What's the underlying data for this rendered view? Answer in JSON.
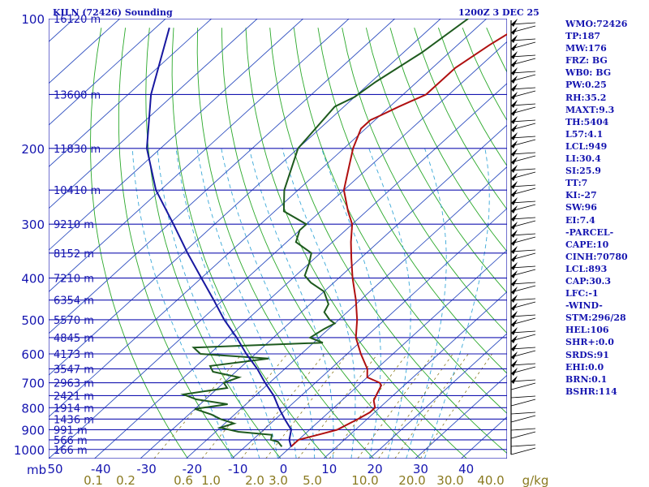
{
  "chart_data": {
    "type": "line",
    "title": "KILN (72426) Sounding",
    "time_label": "1200Z  3 DEC 25",
    "xlabel": "",
    "ylabel": "mb",
    "pressure_ticks": [
      100,
      200,
      300,
      400,
      500,
      600,
      700,
      800,
      900,
      1000
    ],
    "ylim": [
      1050,
      100
    ],
    "temperature_ticks": [
      "50",
      "-40",
      "-30",
      "-20",
      "-10",
      "0",
      "10",
      "20",
      "30",
      "40"
    ],
    "xlim_at_1050mb": [
      -50,
      50
    ],
    "mixing_ratio_ticks": [
      "0.1",
      "0.2",
      "0.6",
      "1.0",
      "2.0",
      "3.0",
      "5.0",
      "10.0",
      "20.0",
      "30.0",
      "40.0"
    ],
    "mixing_ratio_unit": "g/kg",
    "height_labels": [
      {
        "p": 100,
        "label": "16120 m"
      },
      {
        "p": 150,
        "label": "13600 m"
      },
      {
        "p": 200,
        "label": "11830 m"
      },
      {
        "p": 250,
        "label": "10410 m"
      },
      {
        "p": 300,
        "label": "9210 m"
      },
      {
        "p": 350,
        "label": "8152 m"
      },
      {
        "p": 400,
        "label": "7210 m"
      },
      {
        "p": 450,
        "label": "6354 m"
      },
      {
        "p": 500,
        "label": "5570 m"
      },
      {
        "p": 550,
        "label": "4845 m"
      },
      {
        "p": 600,
        "label": "4173 m"
      },
      {
        "p": 650,
        "label": "3547 m"
      },
      {
        "p": 700,
        "label": "2963 m"
      },
      {
        "p": 750,
        "label": "2421 m"
      },
      {
        "p": 800,
        "label": "1914 m"
      },
      {
        "p": 850,
        "label": "1436 m"
      },
      {
        "p": 900,
        "label": "991 m"
      },
      {
        "p": 950,
        "label": "566 m"
      },
      {
        "p": 1000,
        "label": "166 m"
      }
    ],
    "grid": true,
    "series": [
      {
        "name": "",
        "color": "#b01010",
        "points": [
          [
            985,
            0
          ],
          [
            950,
            0
          ],
          [
            925,
            3
          ],
          [
            900,
            6
          ],
          [
            850,
            8
          ],
          [
            820,
            9
          ],
          [
            800,
            9
          ],
          [
            770,
            7
          ],
          [
            740,
            6
          ],
          [
            710,
            5
          ],
          [
            700,
            4
          ],
          [
            680,
            0
          ],
          [
            650,
            -2
          ],
          [
            600,
            -7
          ],
          [
            550,
            -12
          ],
          [
            500,
            -16
          ],
          [
            450,
            -21
          ],
          [
            400,
            -27
          ],
          [
            360,
            -32
          ],
          [
            330,
            -36
          ],
          [
            300,
            -40
          ],
          [
            280,
            -44
          ],
          [
            250,
            -50
          ],
          [
            230,
            -53
          ],
          [
            200,
            -58
          ],
          [
            180,
            -61
          ],
          [
            172,
            -61
          ],
          [
            168,
            -60
          ],
          [
            160,
            -58
          ],
          [
            150,
            -55
          ],
          [
            130,
            -55
          ],
          [
            115,
            -53
          ],
          [
            100,
            -50
          ]
        ]
      },
      {
        "name": "",
        "color": "#1e5a1e",
        "points": [
          [
            985,
            -2
          ],
          [
            960,
            -4
          ],
          [
            950,
            -6
          ],
          [
            925,
            -7
          ],
          [
            910,
            -15
          ],
          [
            890,
            -20
          ],
          [
            870,
            -18
          ],
          [
            850,
            -22
          ],
          [
            830,
            -25
          ],
          [
            805,
            -30
          ],
          [
            785,
            -24
          ],
          [
            765,
            -32
          ],
          [
            745,
            -36
          ],
          [
            720,
            -28
          ],
          [
            700,
            -30
          ],
          [
            680,
            -28
          ],
          [
            660,
            -35
          ],
          [
            640,
            -37
          ],
          [
            615,
            -26
          ],
          [
            600,
            -42
          ],
          [
            580,
            -45
          ],
          [
            565,
            -18
          ],
          [
            550,
            -22
          ],
          [
            525,
            -21
          ],
          [
            510,
            -20
          ],
          [
            500,
            -22
          ],
          [
            480,
            -25
          ],
          [
            460,
            -26
          ],
          [
            430,
            -30
          ],
          [
            410,
            -35
          ],
          [
            395,
            -38
          ],
          [
            370,
            -40
          ],
          [
            350,
            -42
          ],
          [
            330,
            -48
          ],
          [
            310,
            -50
          ],
          [
            300,
            -50
          ],
          [
            280,
            -58
          ],
          [
            250,
            -63
          ],
          [
            200,
            -70
          ],
          [
            160,
            -72
          ],
          [
            152,
            -70
          ],
          [
            140,
            -69
          ],
          [
            120,
            -66
          ],
          [
            100,
            -64
          ]
        ]
      },
      {
        "name": "",
        "color": "#1818a0",
        "points": [
          [
            985,
            0
          ],
          [
            950,
            -2
          ],
          [
            900,
            -4
          ],
          [
            850,
            -8
          ],
          [
            800,
            -12
          ],
          [
            750,
            -16
          ],
          [
            700,
            -21
          ],
          [
            650,
            -26
          ],
          [
            600,
            -32
          ],
          [
            550,
            -38
          ],
          [
            500,
            -45
          ],
          [
            450,
            -52
          ],
          [
            400,
            -60
          ],
          [
            350,
            -69
          ],
          [
            300,
            -79
          ],
          [
            250,
            -91
          ],
          [
            200,
            -103
          ],
          [
            150,
            -115
          ],
          [
            105,
            -127
          ]
        ]
      }
    ]
  },
  "stats": [
    "WMO:72426",
    "TP:187",
    "MW:176",
    "FRZ: BG",
    "WB0: BG",
    "PW:0.25",
    "RH:35.2",
    "MAXT:9.3",
    "TH:5404",
    "L57:4.1",
    "LCL:949",
    "LI:30.4",
    "SI:25.9",
    "TT:7",
    "KI:-27",
    "SW:96",
    "EI:7.4",
    "-PARCEL-",
    "CAPE:10",
    "CINH:70780",
    "LCL:893",
    "CAP:30.3",
    "LFC:-1",
    "-WIND-",
    "STM:296/28",
    "HEL:106",
    "SHR+:0.0",
    "SRDS:91",
    "EHI:0.0",
    "BRN:0.1",
    "BSHR:114"
  ],
  "colors": {
    "text": "#1515b0",
    "isobar": "#1515b0",
    "isotherm": "#3050c0",
    "dry_adiabat": "#2aa82a",
    "moist_adiabat": "#3aa8d8",
    "mixing_ratio": "#8a7a20"
  }
}
